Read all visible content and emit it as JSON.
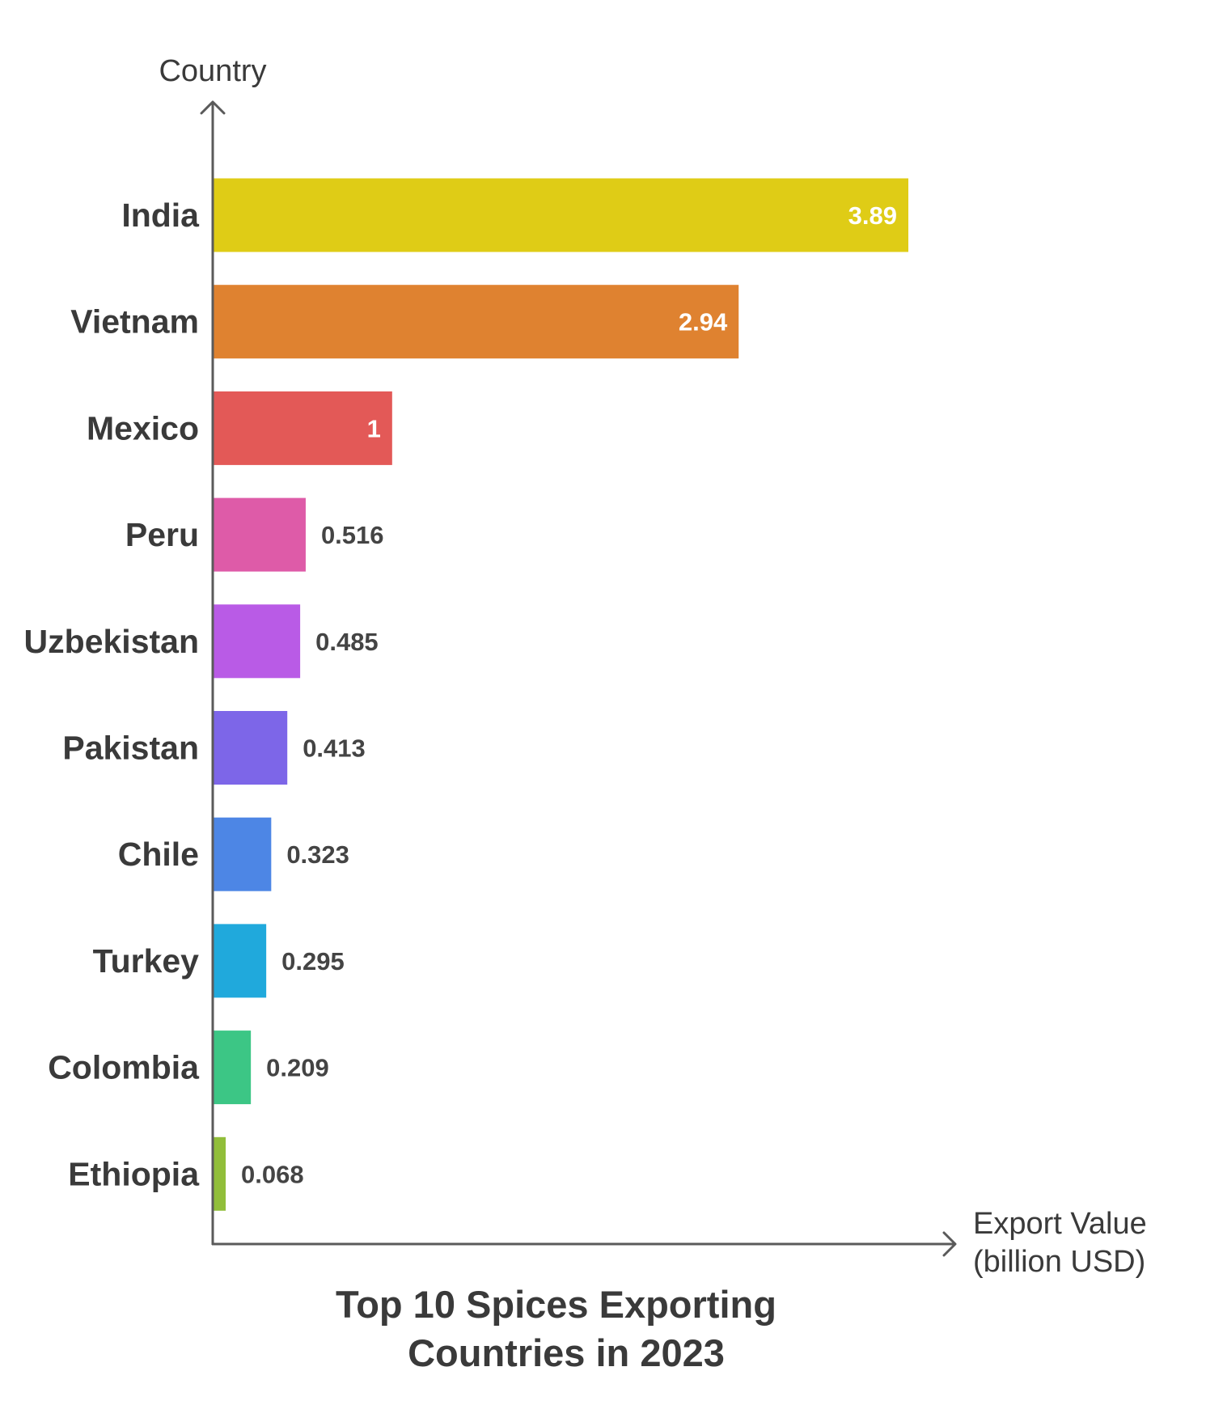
{
  "chart_data": {
    "type": "bar",
    "orientation": "horizontal",
    "title_lines": [
      "Top 10 Spices Exporting",
      "Countries in 2023"
    ],
    "ylabel": "Country",
    "xlabel_lines": [
      "Export Value",
      "(billion USD)"
    ],
    "categories": [
      "India",
      "Vietnam",
      "Mexico",
      "Peru",
      "Uzbekistan",
      "Pakistan",
      "Chile",
      "Turkey",
      "Colombia",
      "Ethiopia"
    ],
    "values": [
      3.89,
      2.94,
      1,
      0.516,
      0.485,
      0.413,
      0.323,
      0.295,
      0.209,
      0.068
    ],
    "value_labels": [
      "3.89",
      "2.94",
      "1",
      "0.516",
      "0.485",
      "0.413",
      "0.323",
      "0.295",
      "0.209",
      "0.068"
    ],
    "colors": [
      "#dfcc16",
      "#df8230",
      "#e35957",
      "#de5ba8",
      "#b95be6",
      "#7d66e8",
      "#4d86e5",
      "#20a9dc",
      "#3cc685",
      "#91be3a"
    ],
    "xlim": [
      0,
      3.89
    ],
    "grid": false,
    "legend": "none"
  }
}
